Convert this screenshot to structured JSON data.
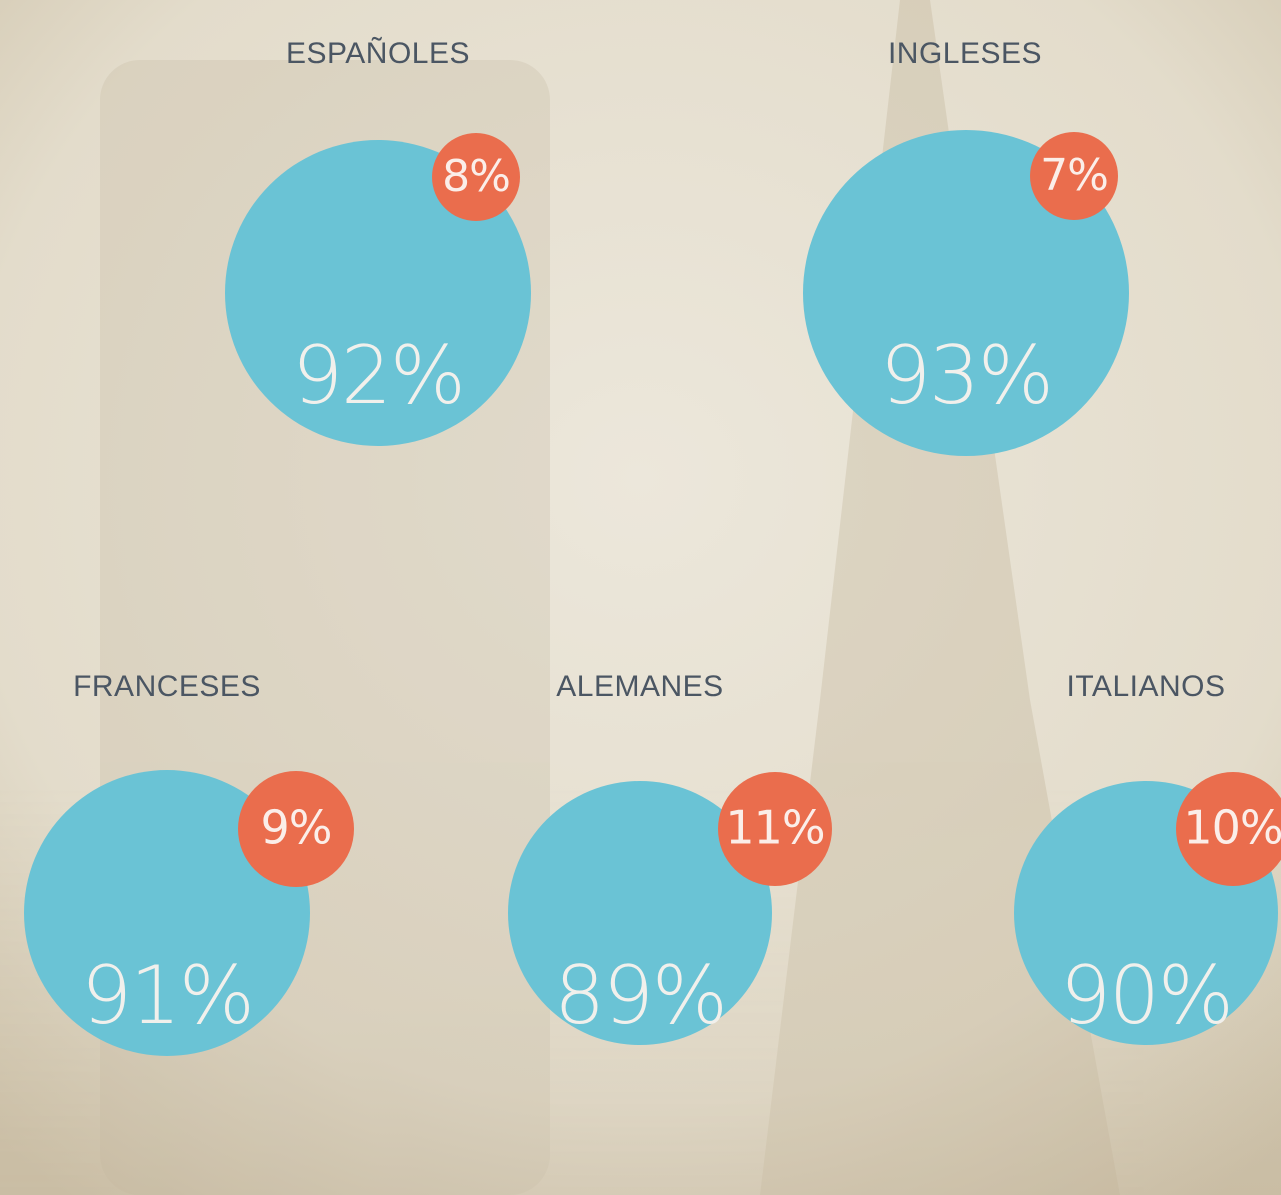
{
  "groups": [
    {
      "label": "ESPAÑOLES",
      "main": "92%",
      "minor": "8%"
    },
    {
      "label": "INGLESES",
      "main": "93%",
      "minor": "7%"
    },
    {
      "label": "FRANCESES",
      "main": "91%",
      "minor": "9%"
    },
    {
      "label": "ALEMANES",
      "main": "89%",
      "minor": "11%"
    },
    {
      "label": "ITALIANOS",
      "main": "90%",
      "minor": "10%"
    }
  ]
}
